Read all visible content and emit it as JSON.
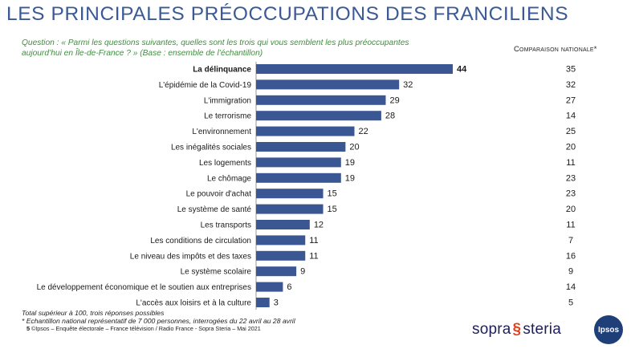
{
  "title": "LES PRINCIPALES PRÉOCCUPATIONS DES FRANCILIENS",
  "question_line1": "Question : « Parmi les questions suivantes, quelles sont les trois qui vous semblent les plus préoccupantes",
  "question_line2": "aujourd’hui en Île-de-France ? » (Base : ensemble de l’échantillon)",
  "comparison_header": "Comparaison nationale*",
  "footnote_total": "Total supérieur à 100, trois réponses possibles",
  "footnote_sample": "* Echantillon national représentatif de 7 000 personnes, interrogées du 22 avril au 28 avril",
  "footnote_source": "©Ipsos – Enquête électorale – France télévision / Radio France  - Sopra Steria – Mai 2021",
  "page_number": "5",
  "logos": {
    "sopra_left": "sopra",
    "sopra_right": "steria",
    "ipsos": "Ipsos"
  },
  "colors": {
    "bar": "#3a5794",
    "title": "#3b5a95",
    "question": "#3e8e3e"
  },
  "chart_data": {
    "type": "bar",
    "orientation": "horizontal",
    "categories": [
      "La délinquance",
      "L'épidémie de la Covid-19",
      "L'immigration",
      "Le terrorisme",
      "L'environnement",
      "Les inégalités sociales",
      "Les logements",
      "Le chômage",
      "Le pouvoir d'achat",
      "Le système de santé",
      "Les transports",
      "Les conditions de circulation",
      "Le niveau des impôts et des taxes",
      "Le système scolaire",
      "Le développement économique et le soutien aux entreprises",
      "L'accès aux loisirs et à la culture"
    ],
    "series": [
      {
        "values": [
          44,
          32,
          29,
          28,
          22,
          20,
          19,
          19,
          15,
          15,
          12,
          11,
          11,
          9,
          6,
          3
        ]
      },
      {
        "name": "Comparaison nationale*",
        "values": [
          35,
          32,
          27,
          14,
          25,
          20,
          11,
          23,
          23,
          20,
          11,
          7,
          16,
          9,
          14,
          5
        ]
      }
    ],
    "highlight_first": true
  }
}
